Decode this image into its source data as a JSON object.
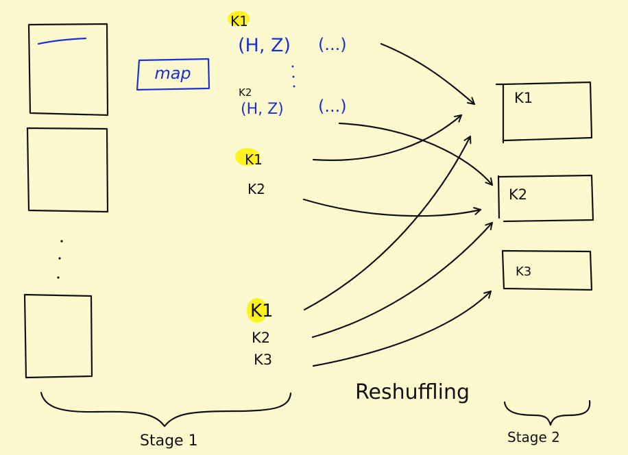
{
  "colors": {
    "background": "#fcf9cf",
    "ink": "#111111",
    "blue_ink": "#1a2fd6",
    "highlight": "#fff200"
  },
  "map_label": "map",
  "group1": {
    "top_key": "K1",
    "pair1": "(H, Z)",
    "ellipsis1": "(...)",
    "second_key": "K2",
    "pair2": "(H, Z)",
    "ellipsis2": "(...)"
  },
  "group2": {
    "keys": [
      "K1",
      "K2"
    ]
  },
  "group3": {
    "keys": [
      "K1",
      "K2",
      "K3"
    ]
  },
  "stage2_boxes": [
    "K1",
    "K2",
    "K3"
  ],
  "reshuffling_label": "Reshuffling",
  "stage1_label": "Stage 1",
  "stage2_label": "Stage 2"
}
